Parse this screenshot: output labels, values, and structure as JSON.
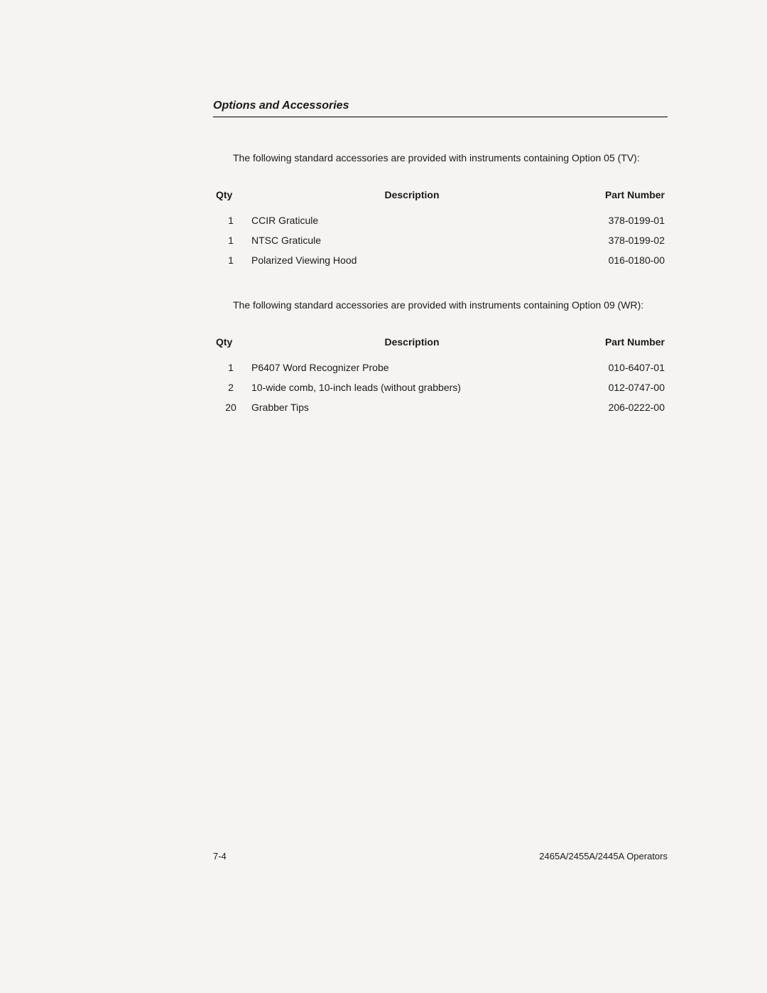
{
  "header": {
    "section_title": "Options and Accessories"
  },
  "block1": {
    "intro": "The following standard accessories are provided with instruments containing Option 05 (TV):",
    "columns": {
      "qty": "Qty",
      "desc": "Description",
      "pn": "Part Number"
    },
    "rows": [
      {
        "qty": "1",
        "desc": "CCIR Graticule",
        "pn": "378-0199-01"
      },
      {
        "qty": "1",
        "desc": "NTSC Graticule",
        "pn": "378-0199-02"
      },
      {
        "qty": "1",
        "desc": "Polarized Viewing Hood",
        "pn": "016-0180-00"
      }
    ]
  },
  "block2": {
    "intro": "The following standard accessories are provided with instruments containing Option 09 (WR):",
    "columns": {
      "qty": "Qty",
      "desc": "Description",
      "pn": "Part Number"
    },
    "rows": [
      {
        "qty": "1",
        "desc": "P6407 Word Recognizer Probe",
        "pn": "010-6407-01"
      },
      {
        "qty": "2",
        "desc": "10-wide comb, 10-inch leads (without grabbers)",
        "pn": "012-0747-00"
      },
      {
        "qty": "20",
        "desc": "Grabber Tips",
        "pn": "206-0222-00"
      }
    ]
  },
  "footer": {
    "page_number": "7-4",
    "doc_id": "2465A/2455A/2445A Operators"
  }
}
